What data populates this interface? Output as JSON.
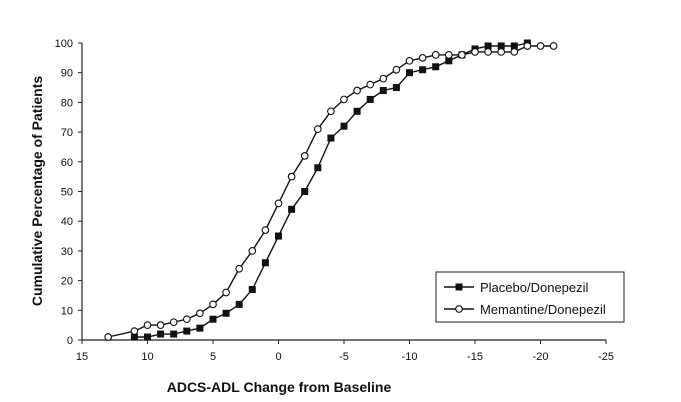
{
  "chart_data": {
    "type": "line",
    "title": "",
    "xlabel": "ADCS-ADL Change from Baseline",
    "ylabel": "Cumulative Percentage of Patients",
    "xlim": [
      15,
      -25
    ],
    "ylim": [
      0,
      100
    ],
    "x_ticks": [
      15,
      10,
      5,
      0,
      -5,
      -10,
      -15,
      -20,
      -25
    ],
    "y_ticks": [
      0,
      10,
      20,
      30,
      40,
      50,
      60,
      70,
      80,
      90,
      100
    ],
    "grid": false,
    "legend_position": "bottom-right",
    "series": [
      {
        "name": "Placebo/Donepezil",
        "marker": "filled-square",
        "x": [
          11,
          10,
          9,
          8,
          7,
          6,
          5,
          4,
          3,
          2,
          1,
          0,
          -1,
          -2,
          -3,
          -4,
          -5,
          -6,
          -7,
          -8,
          -9,
          -10,
          -11,
          -12,
          -13,
          -14,
          -15,
          -16,
          -17,
          -18,
          -19
        ],
        "y": [
          1,
          1,
          2,
          2,
          3,
          4,
          7,
          9,
          12,
          17,
          26,
          35,
          44,
          50,
          58,
          68,
          72,
          77,
          81,
          84,
          85,
          90,
          91,
          92,
          94,
          96,
          98,
          99,
          99,
          99,
          100
        ]
      },
      {
        "name": "Memantine/Donepezil",
        "marker": "open-circle",
        "x": [
          13,
          11,
          10,
          9,
          8,
          7,
          6,
          5,
          4,
          3,
          2,
          1,
          0,
          -1,
          -2,
          -3,
          -4,
          -5,
          -6,
          -7,
          -8,
          -9,
          -10,
          -11,
          -12,
          -13,
          -14,
          -15,
          -16,
          -17,
          -18,
          -19,
          -20,
          -21
        ],
        "y": [
          1,
          3,
          5,
          5,
          6,
          7,
          9,
          12,
          16,
          24,
          30,
          37,
          46,
          55,
          62,
          71,
          77,
          81,
          84,
          86,
          88,
          91,
          94,
          95,
          96,
          96,
          96,
          97,
          97,
          97,
          97,
          99,
          99,
          99
        ]
      }
    ]
  }
}
